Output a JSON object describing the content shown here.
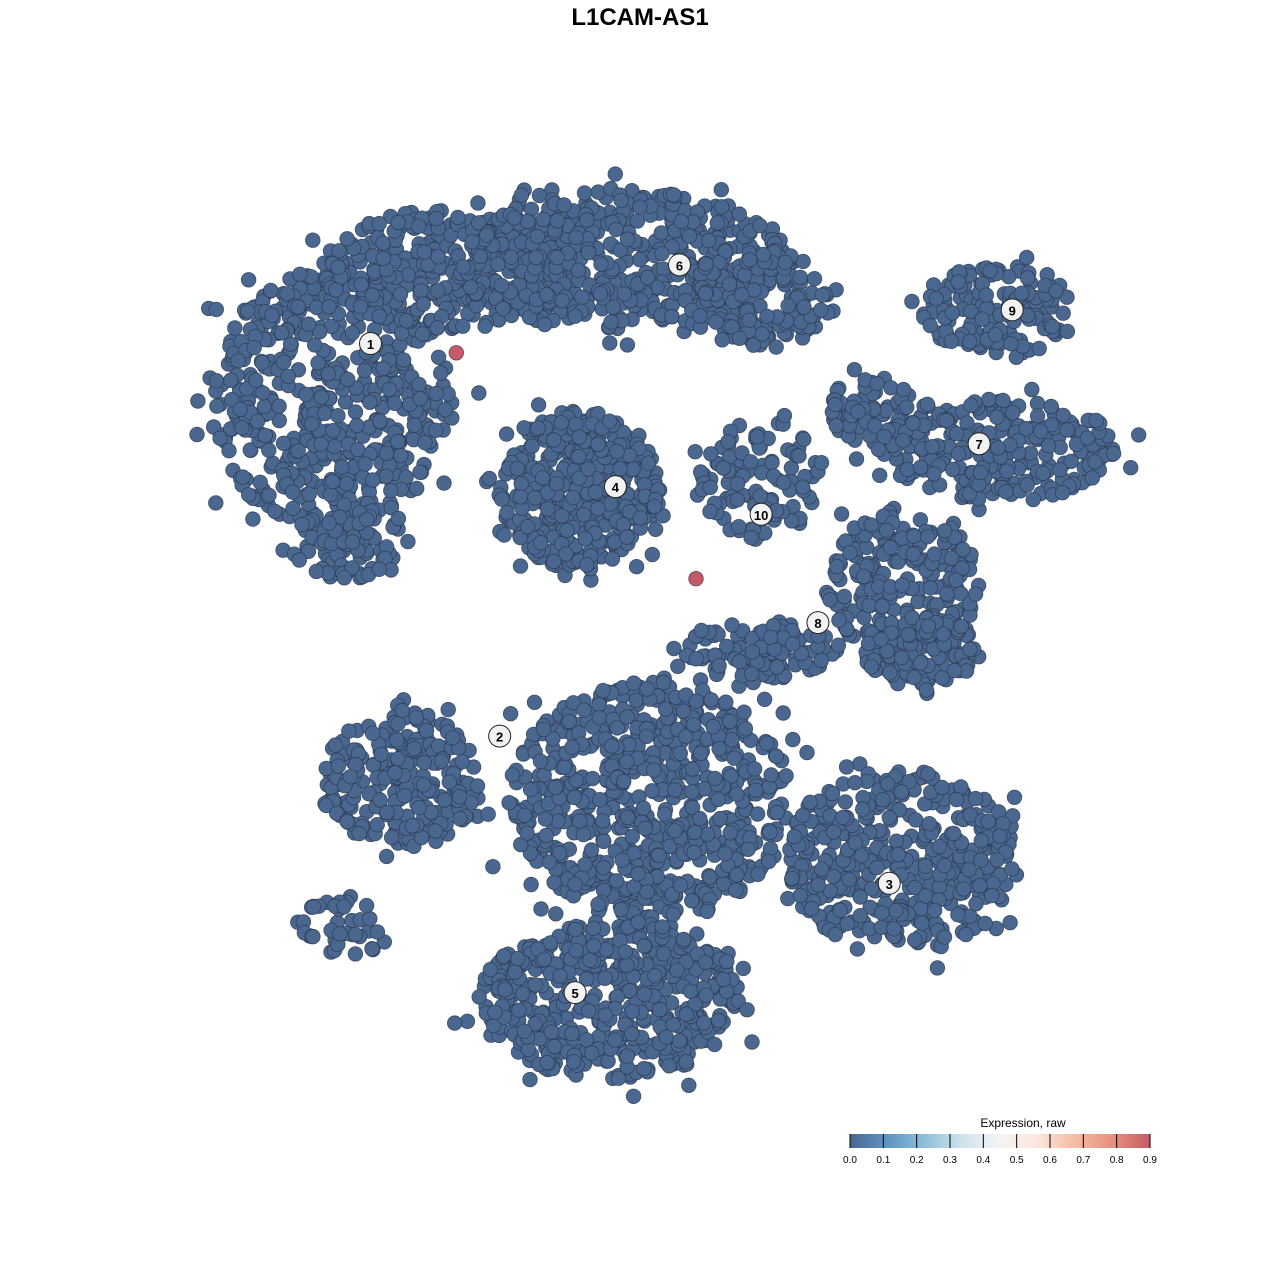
{
  "chart_data": {
    "type": "scatter",
    "title": "L1CAM-AS1",
    "xlabel": "",
    "ylabel": "",
    "xlim": [
      -45,
      45
    ],
    "ylim": [
      -45,
      45
    ],
    "grid": false,
    "axes_visible": false,
    "point_color_low": "#4a6790",
    "point_stroke": "#2c3a50",
    "cell_clouds": [
      {
        "cluster": "1",
        "center": [
          -32.4,
          23.5
        ],
        "spread": [
          11.6,
          12.7
        ],
        "cells": 520
      },
      {
        "cluster": "1",
        "center": [
          -20.8,
          36.2
        ],
        "spread": [
          12.6,
          5.9
        ],
        "cells": 300
      },
      {
        "cluster": "1",
        "center": [
          -30.5,
          9.8
        ],
        "spread": [
          5.8,
          3.9
        ],
        "cells": 100
      },
      {
        "cluster": "6",
        "center": [
          -4.4,
          37.2
        ],
        "spread": [
          16.5,
          6.8
        ],
        "cells": 500
      },
      {
        "cluster": "6",
        "center": [
          9.2,
          33.3
        ],
        "spread": [
          7.7,
          4.9
        ],
        "cells": 150
      },
      {
        "cluster": "4",
        "center": [
          -8.2,
          14.7
        ],
        "spread": [
          7.7,
          7.8
        ],
        "cells": 450
      },
      {
        "cluster": "10",
        "center": [
          9.2,
          15.7
        ],
        "spread": [
          5.8,
          5.9
        ],
        "cells": 110
      },
      {
        "cluster": "9",
        "center": [
          32.4,
          32.3
        ],
        "spread": [
          7.7,
          4.4
        ],
        "cells": 150
      },
      {
        "cluster": "7",
        "center": [
          32.4,
          18.6
        ],
        "spread": [
          11.6,
          4.9
        ],
        "cells": 250
      },
      {
        "cluster": "7",
        "center": [
          20.8,
          22.5
        ],
        "spread": [
          4.8,
          3.9
        ],
        "cells": 80
      },
      {
        "cluster": "8",
        "center": [
          22.8,
          4.9
        ],
        "spread": [
          7.7,
          7.8
        ],
        "cells": 220
      },
      {
        "cluster": "8",
        "center": [
          24.7,
          -1.0
        ],
        "spread": [
          5.8,
          3.4
        ],
        "cells": 120
      },
      {
        "cluster": "8",
        "center": [
          9.2,
          -1.0
        ],
        "spread": [
          7.7,
          2.9
        ],
        "cells": 110
      },
      {
        "cluster": "2",
        "center": [
          -25.7,
          -13.7
        ],
        "spread": [
          7.7,
          6.8
        ],
        "cells": 250
      },
      {
        "cluster": "2",
        "center": [
          -31.5,
          -28.4
        ],
        "spread": [
          4.8,
          2.9
        ],
        "cells": 40
      },
      {
        "cluster": "2",
        "center": [
          -1.5,
          -15.7
        ],
        "spread": [
          13.6,
          11.7
        ],
        "cells": 700
      },
      {
        "cluster": "3",
        "center": [
          22.8,
          -21.5
        ],
        "spread": [
          11.6,
          8.8
        ],
        "cells": 420
      },
      {
        "cluster": "5",
        "center": [
          -5.3,
          -35.2
        ],
        "spread": [
          12.6,
          7.8
        ],
        "cells": 520
      }
    ],
    "expressing_cells": [
      {
        "x": -20.2,
        "y": 28.1,
        "value": 0.9
      },
      {
        "x": 3.0,
        "y": 6.0,
        "value": 0.9
      }
    ],
    "cluster_labels": [
      {
        "text": "1",
        "x": -28.5,
        "y": 29.0
      },
      {
        "text": "2",
        "x": -16.0,
        "y": -9.4
      },
      {
        "text": "3",
        "x": 21.7,
        "y": -23.8
      },
      {
        "text": "4",
        "x": -4.8,
        "y": 15.0
      },
      {
        "text": "5",
        "x": -8.7,
        "y": -34.5
      },
      {
        "text": "6",
        "x": 1.4,
        "y": 36.7
      },
      {
        "text": "7",
        "x": 30.4,
        "y": 19.2
      },
      {
        "text": "8",
        "x": 14.8,
        "y": 1.7
      },
      {
        "text": "9",
        "x": 33.6,
        "y": 32.3
      },
      {
        "text": "10",
        "x": 9.3,
        "y": 12.3
      }
    ],
    "colorbar": {
      "title": "Expression, raw",
      "range": [
        0,
        0.9
      ],
      "ticks": [
        "0.0",
        "0.1",
        "0.2",
        "0.3",
        "0.4",
        "0.5",
        "0.6",
        "0.7",
        "0.8",
        "0.9"
      ],
      "colors": [
        "#4a6790",
        "#5f95c4",
        "#8fc0da",
        "#cfe3ed",
        "#f4f4f4",
        "#fce6dc",
        "#f6bba3",
        "#e8917d",
        "#c65a67"
      ],
      "placement": "bottom-right"
    }
  }
}
